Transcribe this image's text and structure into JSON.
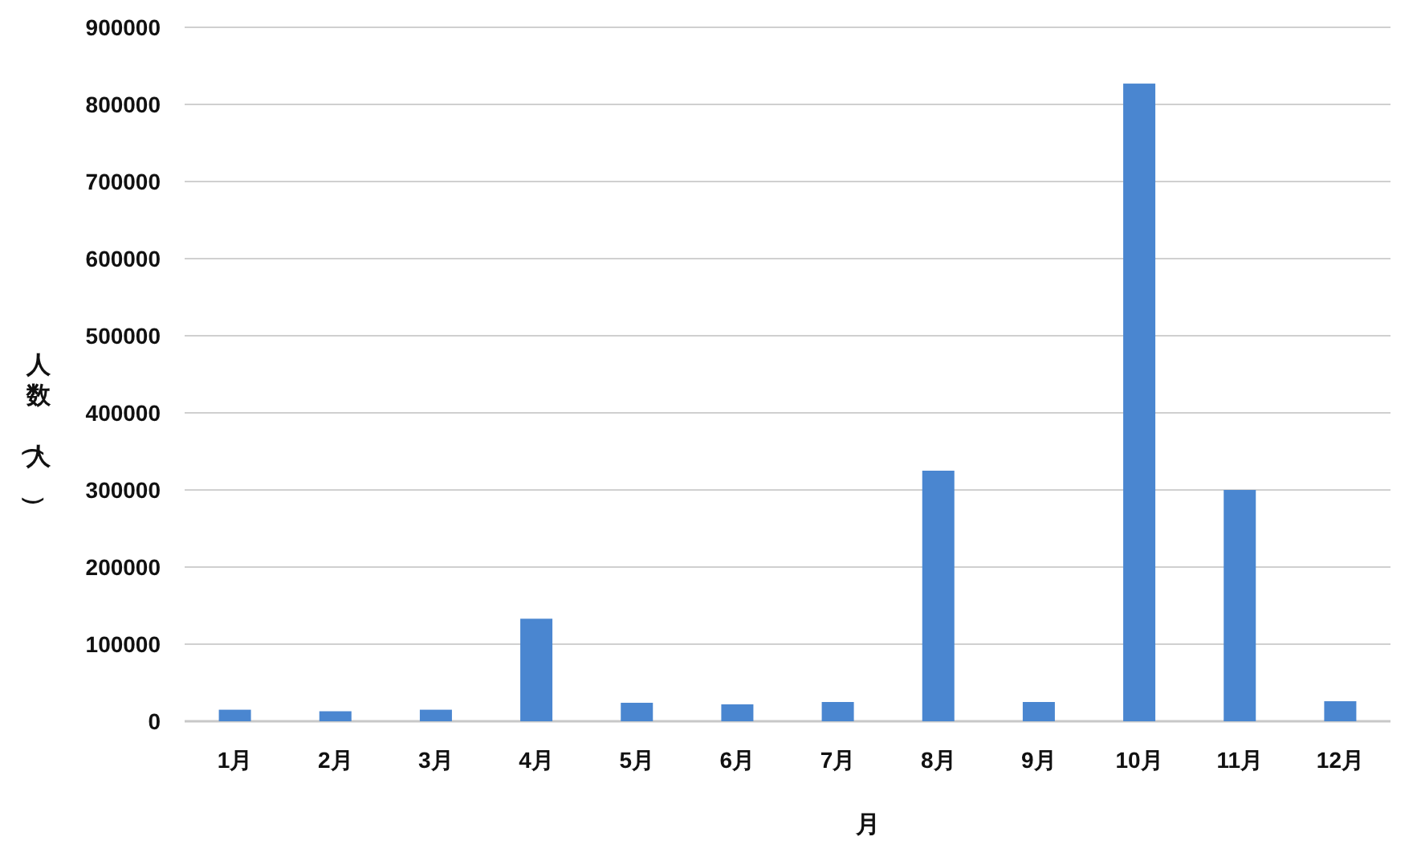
{
  "chart_data": {
    "type": "bar",
    "xlabel": "月",
    "ylabel": "人数（人）",
    "categories": [
      "1月",
      "2月",
      "3月",
      "4月",
      "5月",
      "6月",
      "7月",
      "8月",
      "9月",
      "10月",
      "11月",
      "12月"
    ],
    "values": [
      15000,
      13000,
      15000,
      133000,
      24000,
      22000,
      25000,
      325000,
      25000,
      827000,
      300000,
      26000
    ],
    "color": "#4a86d0",
    "ylim": [
      0,
      900000
    ],
    "yticks": [
      0,
      100000,
      200000,
      300000,
      400000,
      500000,
      600000,
      700000,
      800000,
      900000
    ],
    "grid": "y"
  }
}
